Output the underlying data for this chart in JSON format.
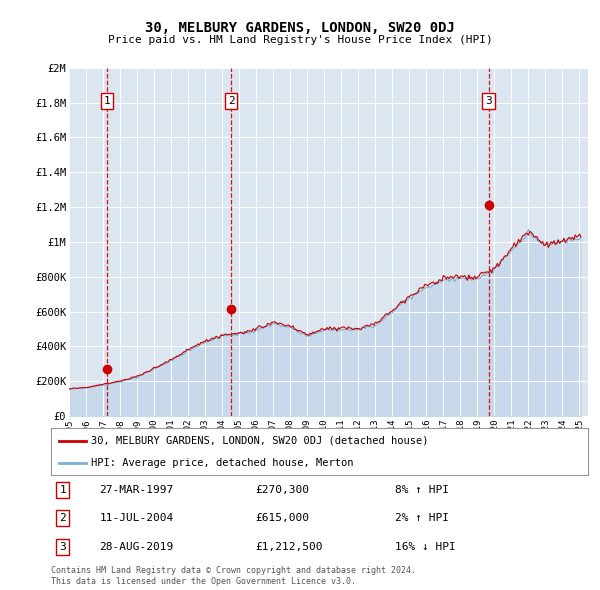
{
  "title": "30, MELBURY GARDENS, LONDON, SW20 0DJ",
  "subtitle": "Price paid vs. HM Land Registry's House Price Index (HPI)",
  "background_color": "#ffffff",
  "plot_bg_color": "#dce6f0",
  "grid_color": "#ffffff",
  "sale_prices": [
    270300,
    615000,
    1212500
  ],
  "sale_labels": [
    "1",
    "2",
    "3"
  ],
  "sale_pct": [
    "8% ↑ HPI",
    "2% ↑ HPI",
    "16% ↓ HPI"
  ],
  "sale_dates_str": [
    "27-MAR-1997",
    "11-JUL-2004",
    "28-AUG-2019"
  ],
  "sale_prices_str": [
    "£270,300",
    "£615,000",
    "£1,212,500"
  ],
  "sale_year_floats": [
    1997.23,
    2004.54,
    2019.66
  ],
  "red_line_color": "#cc0000",
  "blue_line_color": "#7bafd4",
  "blue_fill_color": "#c8d9eb",
  "dashed_line_color": "#cc0000",
  "marker_color": "#cc0000",
  "legend1": "30, MELBURY GARDENS, LONDON, SW20 0DJ (detached house)",
  "legend2": "HPI: Average price, detached house, Merton",
  "footer1": "Contains HM Land Registry data © Crown copyright and database right 2024.",
  "footer2": "This data is licensed under the Open Government Licence v3.0.",
  "ylim": [
    0,
    2000000
  ],
  "yticks": [
    0,
    200000,
    400000,
    600000,
    800000,
    1000000,
    1200000,
    1400000,
    1600000,
    1800000,
    2000000
  ],
  "ytick_labels": [
    "£0",
    "£200K",
    "£400K",
    "£600K",
    "£800K",
    "£1M",
    "£1.2M",
    "£1.4M",
    "£1.6M",
    "£1.8M",
    "£2M"
  ],
  "xmin_year": 1995.0,
  "xmax_year": 2025.5,
  "xtick_years": [
    1995,
    1996,
    1997,
    1998,
    1999,
    2000,
    2001,
    2002,
    2003,
    2004,
    2005,
    2006,
    2007,
    2008,
    2009,
    2010,
    2011,
    2012,
    2013,
    2014,
    2015,
    2016,
    2017,
    2018,
    2019,
    2020,
    2021,
    2022,
    2023,
    2024,
    2025
  ]
}
